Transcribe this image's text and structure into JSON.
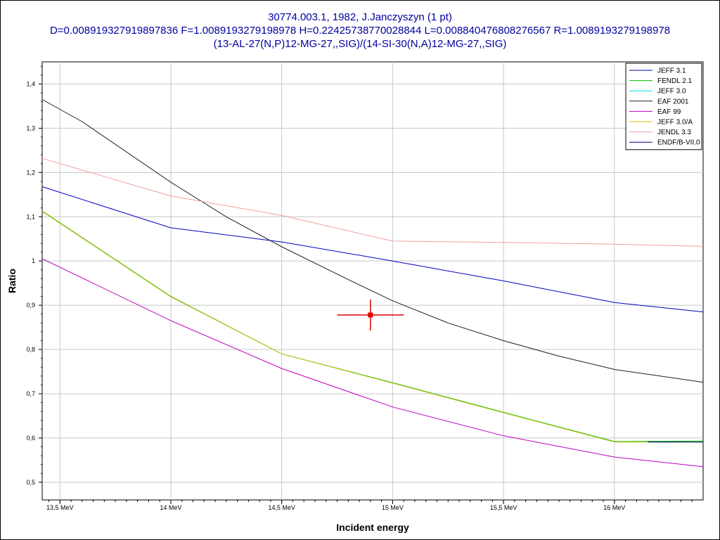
{
  "chart_data": {
    "type": "line",
    "title": "30774.003.1, 1982, J.Janczyszyn (1 pt)",
    "subtitle": "D=0.008919327919897836 F=1.0089193279198978 H=0.22425738770028844 L=0.008840476808276567 R=1.0089193279198978",
    "subtitle2": "(13-AL-27(N,P)12-MG-27,,SIG)/(14-SI-30(N,A)12-MG-27,,SIG)",
    "xlabel": "Incident energy",
    "ylabel": "Ratio",
    "xlim": [
      13.42,
      16.4
    ],
    "ylim": [
      0.46,
      1.45
    ],
    "x_ticks": [
      {
        "value": 13.5,
        "label": "13,5 MeV"
      },
      {
        "value": 14.0,
        "label": "14 MeV"
      },
      {
        "value": 14.5,
        "label": "14,5 MeV"
      },
      {
        "value": 15.0,
        "label": "15 MeV"
      },
      {
        "value": 15.5,
        "label": "15,5 MeV"
      },
      {
        "value": 16.0,
        "label": "16 MeV"
      }
    ],
    "y_ticks": [
      {
        "value": 0.5,
        "label": "0,5"
      },
      {
        "value": 0.6,
        "label": "0,6"
      },
      {
        "value": 0.7,
        "label": "0,7"
      },
      {
        "value": 0.8,
        "label": "0,8"
      },
      {
        "value": 0.9,
        "label": "0,9"
      },
      {
        "value": 1.0,
        "label": "1"
      },
      {
        "value": 1.1,
        "label": "1,1"
      },
      {
        "value": 1.2,
        "label": "1,2"
      },
      {
        "value": 1.3,
        "label": "1,3"
      },
      {
        "value": 1.4,
        "label": "1,4"
      }
    ],
    "grid": true,
    "legend_position": "top-right",
    "series": [
      {
        "name": "JEFF 3.1",
        "color": "#0000c0",
        "x": [
          13.42,
          14.0,
          14.5,
          15.0,
          15.5,
          16.0,
          16.4
        ],
        "y": [
          1.168,
          1.075,
          1.043,
          1.0,
          0.955,
          0.906,
          0.885
        ]
      },
      {
        "name": "FENDL 2.1",
        "color": "#00c000",
        "x": [
          13.42,
          14.0,
          14.5,
          15.0,
          15.5,
          16.0,
          16.4
        ],
        "y": [
          1.113,
          0.92,
          0.79,
          0.725,
          0.658,
          0.592,
          0.593
        ]
      },
      {
        "name": "JEFF 3.0",
        "color": "#00e0e0",
        "x": [
          13.42,
          14.0,
          14.5,
          15.0,
          15.5,
          16.0,
          16.4
        ],
        "y": [
          1.112,
          0.919,
          0.79,
          0.724,
          0.657,
          0.591,
          0.591
        ]
      },
      {
        "name": "EAF 2001",
        "color": "#202020",
        "x": [
          13.42,
          13.6,
          14.0,
          14.25,
          14.5,
          14.8,
          15.0,
          15.25,
          15.5,
          15.75,
          16.0,
          16.4
        ],
        "y": [
          1.365,
          1.315,
          1.178,
          1.1,
          1.032,
          0.958,
          0.91,
          0.86,
          0.82,
          0.785,
          0.755,
          0.726
        ]
      },
      {
        "name": "EAF 99",
        "color": "#c000c0",
        "x": [
          13.42,
          14.0,
          14.5,
          15.0,
          15.5,
          16.0,
          16.4
        ],
        "y": [
          1.005,
          0.865,
          0.757,
          0.67,
          0.605,
          0.557,
          0.535
        ]
      },
      {
        "name": "JEFF 3.0/A",
        "color": "#e0c000",
        "x": [
          13.42,
          14.0,
          14.5,
          15.0,
          15.5,
          16.0,
          16.4
        ],
        "y": [
          1.112,
          0.919,
          0.79,
          0.724,
          0.657,
          0.591,
          0.591
        ]
      },
      {
        "name": "JENDL 3.3",
        "color": "#f0a0a0",
        "x": [
          13.42,
          14.0,
          14.5,
          15.0,
          15.5,
          16.0,
          16.4
        ],
        "y": [
          1.232,
          1.147,
          1.103,
          1.045,
          1.042,
          1.038,
          1.033
        ]
      },
      {
        "name": "ENDF/B-VII.0",
        "color": "#000080",
        "x": [
          16.15,
          16.4
        ],
        "y": [
          0.591,
          0.591
        ]
      }
    ],
    "experimental_point": {
      "x": 14.9,
      "y": 0.878,
      "x_err": 0.15,
      "y_err": 0.035,
      "color": "#e00000"
    }
  }
}
